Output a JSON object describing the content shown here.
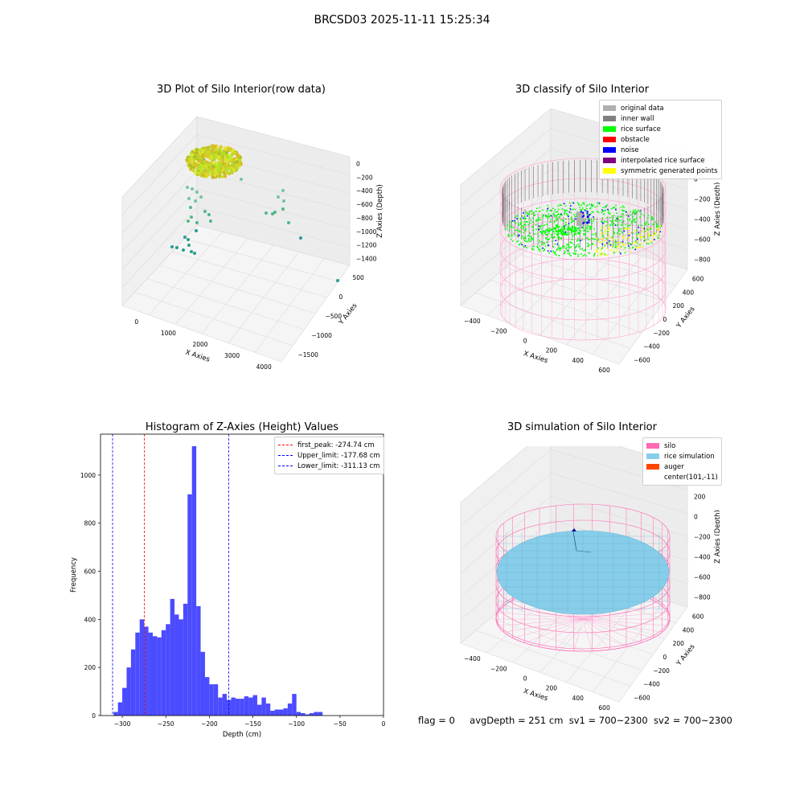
{
  "figure": {
    "title": "BRCSD03 2025-11-11 15:25:34",
    "status_line": {
      "flag": "flag = 0",
      "avg_depth": "avgDepth = 251 cm",
      "sv1": "sv1 = 700~2300",
      "sv2": "sv2 = 700~2300"
    }
  },
  "colors": {
    "hist_bar": "#4b4bff",
    "peak_line": "#ff0000",
    "limit_line": "#0000ff",
    "silo": "#ff69b4",
    "rice_sim": "#87ceeb",
    "auger": "#ff4500",
    "original": "#b0b0b0",
    "inner_wall": "#808080",
    "rice_surface": "#00ff00",
    "obstacle": "#ff0000",
    "noise": "#0000ff",
    "interp": "#800080",
    "symmetric": "#ffff00"
  },
  "chart_data": [
    {
      "type": "scatter",
      "panel": "raw",
      "title": "3D Plot of Silo Interior(row data)",
      "xlabel": "X Axies",
      "ylabel": "Y Axies",
      "zlabel": "Z Axies (Depth)",
      "x_ticks": [
        "0",
        "1000",
        "2000",
        "3000",
        "4000"
      ],
      "y_ticks": [
        "500",
        "0",
        "−500",
        "−1000",
        "−1500"
      ],
      "z_ticks": [
        "0",
        "−200",
        "−400",
        "−600",
        "−800",
        "−1000",
        "−1200",
        "−1400"
      ],
      "xlim": [
        -500,
        4500
      ],
      "ylim": [
        -1800,
        700
      ],
      "zlim": [
        -1500,
        100
      ]
    },
    {
      "type": "scatter",
      "panel": "classify",
      "title": "3D classify of Silo Interior",
      "xlabel": "X Axies",
      "ylabel": "Y Axies",
      "zlabel": "Z Axies (Depth)",
      "x_ticks": [
        "−400",
        "−200",
        "0",
        "200",
        "400",
        "600"
      ],
      "y_ticks": [
        "600",
        "400",
        "200",
        "0",
        "−200",
        "−400",
        "−600"
      ],
      "z_ticks": [
        "200",
        "0",
        "−200",
        "−400",
        "−600",
        "−800"
      ],
      "legend": [
        "original data",
        "inner wall",
        "rice surface",
        "obstacle",
        "noise",
        "interpolated rice surface",
        "symmetric generated points"
      ]
    },
    {
      "type": "bar",
      "panel": "histogram",
      "title": "Histogram of Z-Axies (Height) Values",
      "xlabel": "Depth (cm)",
      "ylabel": "Frequency",
      "xlim": [
        -325,
        0
      ],
      "ylim": [
        0,
        1170
      ],
      "x_ticks": [
        -300,
        -250,
        -200,
        -150,
        -100,
        -50,
        0
      ],
      "y_ticks": [
        0,
        200,
        400,
        600,
        800,
        1000
      ],
      "bin_start": -315,
      "bin_width": 5,
      "values": [
        0,
        15,
        55,
        115,
        200,
        275,
        345,
        400,
        370,
        345,
        330,
        325,
        355,
        380,
        485,
        420,
        400,
        465,
        920,
        1120,
        455,
        265,
        160,
        130,
        130,
        75,
        90,
        65,
        75,
        70,
        70,
        80,
        75,
        85,
        45,
        75,
        50,
        20,
        25,
        25,
        30,
        50,
        90,
        15,
        10,
        5,
        10,
        15,
        15,
        0
      ],
      "vlines": [
        {
          "label": "first_peak: -274.74 cm",
          "x": -274.74,
          "role": "peak"
        },
        {
          "label": "Upper_limit: -177.68 cm",
          "x": -177.68,
          "role": "limit"
        },
        {
          "label": "Lower_limit: -311.13 cm",
          "x": -311.13,
          "role": "limit"
        }
      ],
      "legend_position": "upper right"
    },
    {
      "type": "surface",
      "panel": "simulation",
      "title": "3D simulation of Silo Interior",
      "xlabel": "X Axies",
      "ylabel": "Y Axies",
      "zlabel": "Z Axies (Depth)",
      "x_ticks": [
        "−400",
        "−200",
        "0",
        "200",
        "400",
        "600"
      ],
      "y_ticks": [
        "600",
        "400",
        "200",
        "0",
        "−200",
        "−400",
        "−600"
      ],
      "z_ticks": [
        "400",
        "200",
        "0",
        "−200",
        "−400",
        "−600",
        "−800"
      ],
      "legend": [
        "silo",
        "rice simulation",
        "auger",
        "center(101,-11)"
      ]
    }
  ]
}
